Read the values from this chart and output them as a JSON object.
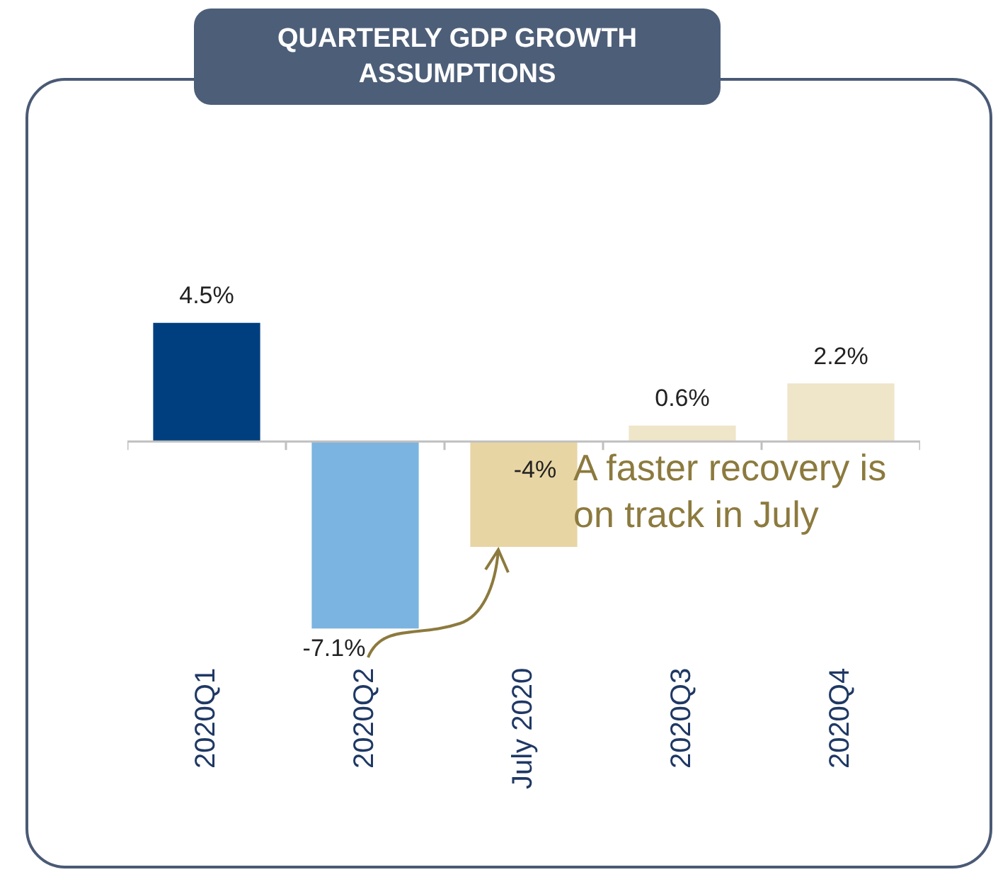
{
  "chart_data": {
    "type": "bar",
    "title": "QUARTERLY GDP GROWTH ASSUMPTIONS",
    "categories": [
      "2020Q1",
      "2020Q2",
      "July 2020",
      "2020Q3",
      "2020Q4"
    ],
    "values": [
      4.5,
      -7.1,
      -4,
      0.6,
      2.2
    ],
    "colors": [
      "#003f7f",
      "#7bb4e0",
      "#e8d5a4",
      "#efe5c8",
      "#efe5c8"
    ],
    "value_labels": [
      "4.5%",
      "-7.1%",
      "-4%",
      "0.6%",
      "2.2%"
    ],
    "annotations": [
      "A faster recovery is on track in July"
    ],
    "grid": false,
    "legend": false
  }
}
